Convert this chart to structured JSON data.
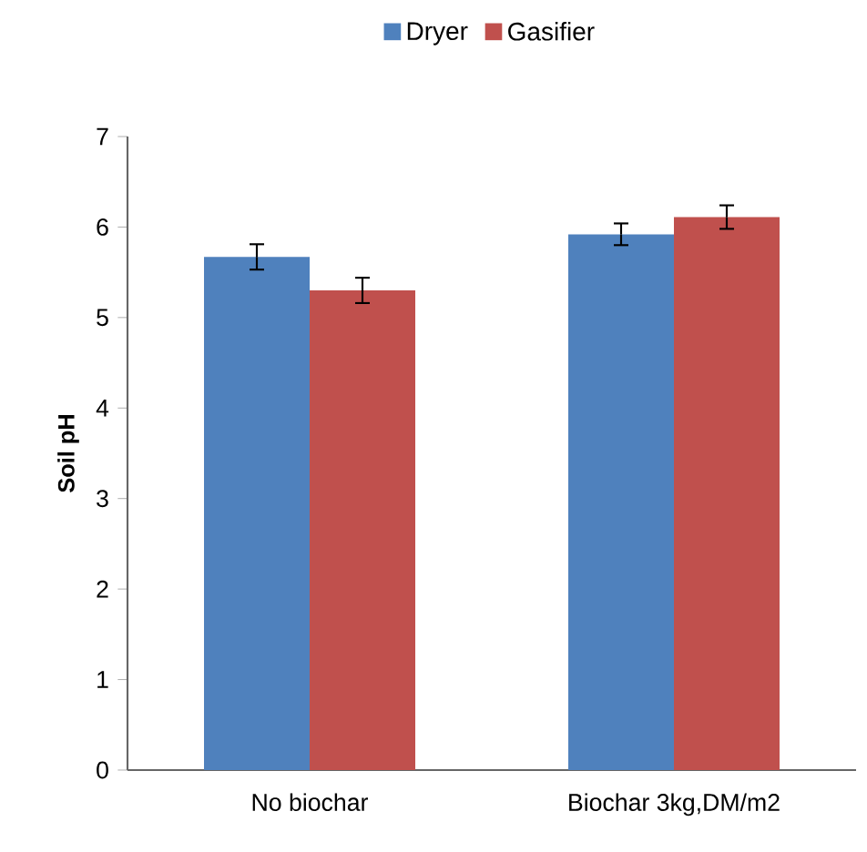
{
  "chart_data": {
    "type": "bar",
    "ylabel": "Soil pH",
    "categories": [
      "No biochar",
      "Biochar 3kg,DM/m2"
    ],
    "series": [
      {
        "name": "Dryer",
        "color": "#4f81bd",
        "values": [
          5.67,
          5.92
        ],
        "errors": [
          0.14,
          0.12
        ]
      },
      {
        "name": "Gasifier",
        "color": "#c0504d",
        "values": [
          5.3,
          6.11
        ],
        "errors": [
          0.14,
          0.13
        ]
      }
    ],
    "ylim": [
      0,
      7
    ],
    "yticks": [
      0,
      1,
      2,
      3,
      4,
      5,
      6,
      7
    ],
    "legend": "top",
    "grid": false
  }
}
